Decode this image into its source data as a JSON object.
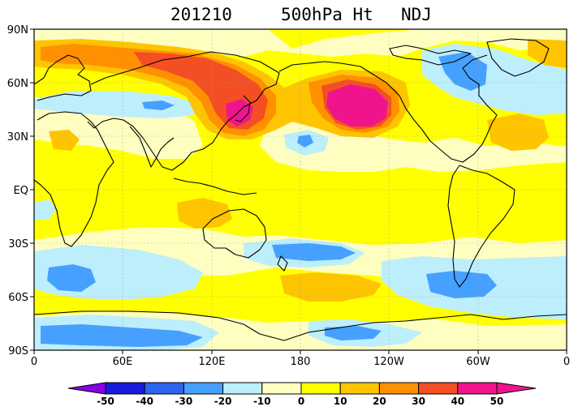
{
  "title": {
    "date": "201210",
    "variable": "500hPa Ht",
    "season": "NDJ"
  },
  "axes": {
    "x_ticks": [
      "0",
      "60E",
      "120E",
      "180",
      "120W",
      "60W",
      "0"
    ],
    "y_ticks": [
      "90N",
      "60N",
      "30N",
      "EQ",
      "30S",
      "60S",
      "90S"
    ]
  },
  "colorbar": {
    "labels": [
      "-50",
      "-40",
      "-30",
      "-20",
      "-10",
      "0",
      "10",
      "20",
      "30",
      "40",
      "50"
    ],
    "colors": [
      "#8a00e6",
      "#1a1adc",
      "#2d64f0",
      "#46a0ff",
      "#bdeefc",
      "#fefec0",
      "#ffff00",
      "#ffc400",
      "#ff9000",
      "#f44e24",
      "#f0148c",
      "#f0148c"
    ]
  },
  "palette": {
    "ocean_base": "#ffff00",
    "light_yellow": "#fefec0",
    "light_blue": "#bdeefc",
    "mid_blue": "#46a0ff",
    "orange": "#ffc400",
    "dark_orange": "#ff9000",
    "red": "#f44e24",
    "magenta": "#f0148c"
  }
}
